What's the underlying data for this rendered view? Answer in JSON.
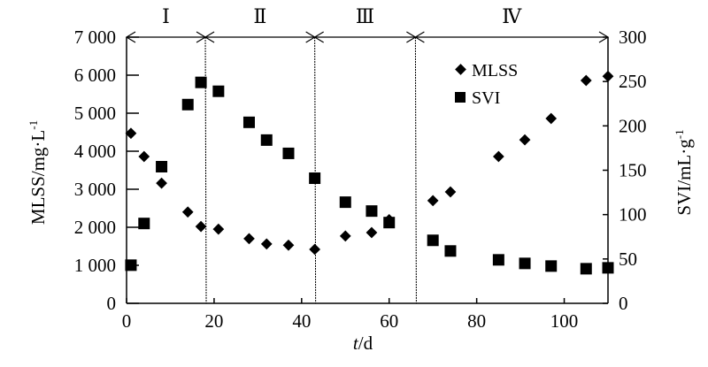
{
  "chart_data": {
    "type": "scatter",
    "xlabel_italic": "t",
    "xlabel_rest": "/d",
    "ylabel_left": "MLSS/mg·L",
    "ylabel_left_sup": "-1",
    "ylabel_right": "SVI/mL·g",
    "ylabel_right_sup": "-1",
    "xlim": [
      0,
      110
    ],
    "ylim_left": [
      0,
      7000
    ],
    "ylim_right": [
      0,
      300
    ],
    "xticks": [
      0,
      20,
      40,
      60,
      80,
      100
    ],
    "yticks_left": [
      "0",
      "1 000",
      "2 000",
      "3 000",
      "4 000",
      "5 000",
      "6 000",
      "7 000"
    ],
    "yticks_right": [
      "0",
      "50",
      "100",
      "150",
      "200",
      "250",
      "300"
    ],
    "grid": false,
    "legend_position": "top-right",
    "phases": [
      {
        "label": "Ⅰ",
        "start": 0,
        "end": 18
      },
      {
        "label": "Ⅱ",
        "start": 18,
        "end": 43
      },
      {
        "label": "Ⅲ",
        "start": 43,
        "end": 66
      },
      {
        "label": "Ⅳ",
        "start": 66,
        "end": 110
      }
    ],
    "series": [
      {
        "name": "MLSS",
        "axis": "left",
        "marker": "diamond",
        "x": [
          1,
          4,
          8,
          14,
          17,
          21,
          28,
          32,
          37,
          43,
          50,
          56,
          60,
          70,
          74,
          85,
          91,
          97,
          105,
          110
        ],
        "y": [
          4470,
          3860,
          3160,
          2400,
          2020,
          1950,
          1700,
          1560,
          1530,
          1420,
          1770,
          1860,
          2200,
          2700,
          2930,
          3860,
          4300,
          4860,
          5860,
          5970
        ]
      },
      {
        "name": "SVI",
        "axis": "right",
        "marker": "square",
        "x": [
          1,
          4,
          8,
          14,
          17,
          21,
          28,
          32,
          37,
          43,
          50,
          56,
          60,
          70,
          74,
          85,
          91,
          97,
          105,
          110
        ],
        "y": [
          43,
          90,
          154,
          224,
          249,
          239,
          204,
          184,
          169,
          141,
          114,
          104,
          91,
          71,
          59,
          49,
          45,
          42,
          39,
          40
        ]
      }
    ]
  }
}
